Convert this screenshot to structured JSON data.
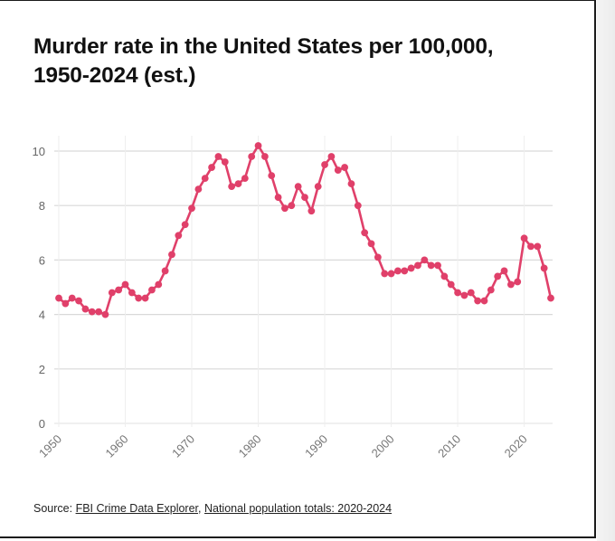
{
  "chart_data": {
    "type": "line",
    "title": "Murder rate in the United States per 100,000, 1950-2024 (est.)",
    "title_lines": [
      "Murder rate in the United States per 100,000,",
      "1950-2024 (est.)"
    ],
    "xlabel": "",
    "ylabel": "",
    "xlim": [
      1950,
      2024
    ],
    "ylim": [
      0,
      10.5
    ],
    "yticks": [
      0,
      2,
      4,
      6,
      8,
      10
    ],
    "xticks": [
      1950,
      1960,
      1970,
      1980,
      1990,
      2000,
      2010,
      2020
    ],
    "grid": true,
    "legend": "none",
    "line_color": "#e0406a",
    "series": [
      {
        "name": "Murder rate per 100,000",
        "x": [
          1950,
          1951,
          1952,
          1953,
          1954,
          1955,
          1956,
          1957,
          1958,
          1959,
          1960,
          1961,
          1962,
          1963,
          1964,
          1965,
          1966,
          1967,
          1968,
          1969,
          1970,
          1971,
          1972,
          1973,
          1974,
          1975,
          1976,
          1977,
          1978,
          1979,
          1980,
          1981,
          1982,
          1983,
          1984,
          1985,
          1986,
          1987,
          1988,
          1989,
          1990,
          1991,
          1992,
          1993,
          1994,
          1995,
          1996,
          1997,
          1998,
          1999,
          2000,
          2001,
          2002,
          2003,
          2004,
          2005,
          2006,
          2007,
          2008,
          2009,
          2010,
          2011,
          2012,
          2013,
          2014,
          2015,
          2016,
          2017,
          2018,
          2019,
          2020,
          2021,
          2022,
          2023,
          2024
        ],
        "values": [
          4.6,
          4.4,
          4.6,
          4.5,
          4.2,
          4.1,
          4.1,
          4.0,
          4.8,
          4.9,
          5.1,
          4.8,
          4.6,
          4.6,
          4.9,
          5.1,
          5.6,
          6.2,
          6.9,
          7.3,
          7.9,
          8.6,
          9.0,
          9.4,
          9.8,
          9.6,
          8.7,
          8.8,
          9.0,
          9.8,
          10.2,
          9.8,
          9.1,
          8.3,
          7.9,
          8.0,
          8.7,
          8.3,
          7.8,
          8.7,
          9.5,
          9.8,
          9.3,
          9.4,
          8.8,
          8.0,
          7.0,
          6.6,
          6.1,
          5.5,
          5.5,
          5.6,
          5.6,
          5.7,
          5.8,
          6.0,
          5.8,
          5.8,
          5.4,
          5.1,
          4.8,
          4.7,
          4.8,
          4.5,
          4.5,
          4.9,
          5.4,
          5.6,
          5.1,
          5.2,
          6.8,
          6.5,
          6.5,
          5.7,
          4.6
        ]
      }
    ]
  },
  "source": {
    "prefix": "Source: ",
    "link1": "FBI Crime Data Explorer",
    "separator": ", ",
    "link2": "National population totals: 2020-2024"
  }
}
